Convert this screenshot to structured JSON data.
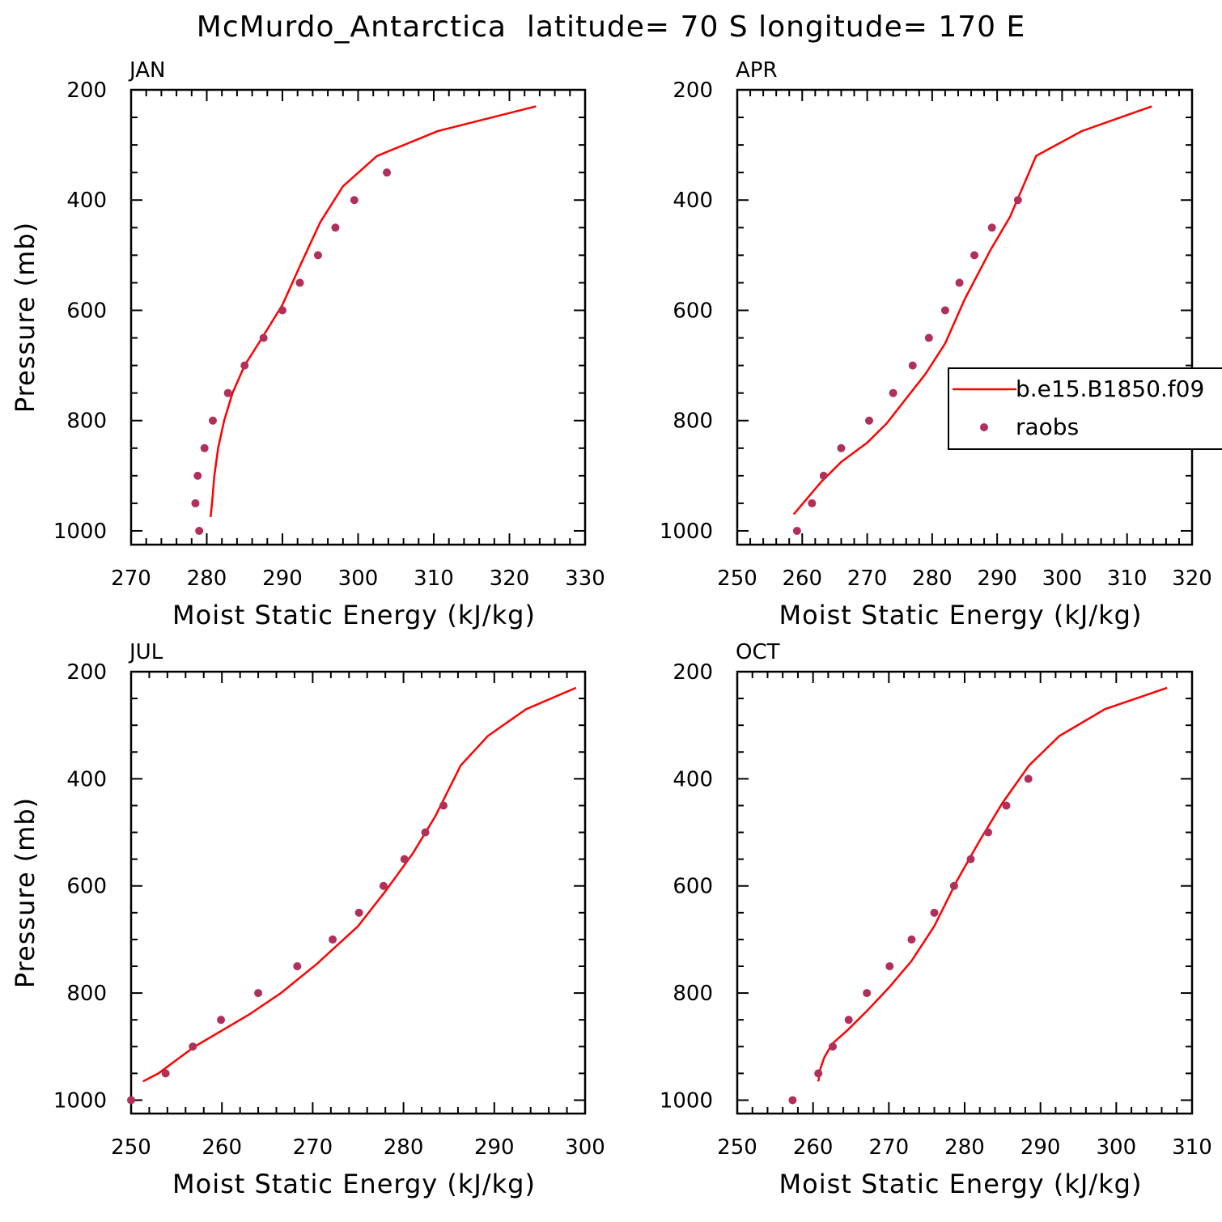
{
  "figure": {
    "title": "McMurdo_Antarctica  latitude= 70 S longitude= 170 E"
  },
  "colors": {
    "model_line": "#ff0000",
    "obs_marker": "#b0305a",
    "axes": "#000000",
    "background": "#ffffff"
  },
  "legend": {
    "placement": "right-middle, top-right panel",
    "entries": [
      {
        "label": "b.e15.B1850.f09",
        "kind": "line",
        "color": "#ff0000"
      },
      {
        "label": "raobs",
        "kind": "marker",
        "color": "#b0305a"
      }
    ]
  },
  "chart_data": [
    {
      "type": "line+scatter",
      "panel": "JAN",
      "xlabel": "Moist Static Energy (kJ/kg)",
      "ylabel": "Pressure (mb)",
      "xlim": [
        270,
        330
      ],
      "ylim": [
        1025,
        200
      ],
      "y_inverted": true,
      "xticks": [
        270,
        280,
        290,
        300,
        310,
        320,
        330
      ],
      "yticks": [
        200,
        400,
        600,
        800,
        1000
      ],
      "series": [
        {
          "name": "b.e15.B1850.f09",
          "kind": "line",
          "x": [
            280.5,
            280.7,
            281.0,
            281.5,
            282.3,
            283.4,
            285.0,
            287.3,
            290.0,
            292.3,
            295.0,
            298.0,
            302.5,
            310.5,
            323.5
          ],
          "y": [
            975,
            950,
            900,
            850,
            800,
            750,
            700,
            650,
            590,
            520,
            440,
            375,
            320,
            275,
            230
          ]
        },
        {
          "name": "raobs",
          "kind": "scatter",
          "x": [
            279.0,
            278.5,
            278.8,
            279.7,
            280.8,
            282.8,
            285.0,
            287.5,
            290.0,
            292.3,
            294.7,
            297.0,
            299.5,
            303.8
          ],
          "y": [
            1000,
            950,
            900,
            850,
            800,
            750,
            700,
            650,
            600,
            550,
            500,
            450,
            400,
            350
          ]
        }
      ]
    },
    {
      "type": "line+scatter",
      "panel": "APR",
      "xlabel": "Moist Static Energy (kJ/kg)",
      "ylabel": "",
      "xlim": [
        250,
        320
      ],
      "ylim": [
        1025,
        200
      ],
      "y_inverted": true,
      "xticks": [
        250,
        260,
        270,
        280,
        290,
        300,
        310,
        320
      ],
      "yticks": [
        200,
        400,
        600,
        800,
        1000
      ],
      "series": [
        {
          "name": "b.e15.B1850.f09",
          "kind": "line",
          "x": [
            258.7,
            261.2,
            263.0,
            266.0,
            270.0,
            273.0,
            276.0,
            279.0,
            282.0,
            285.0,
            289.0,
            292.0,
            296.0,
            303.0,
            313.8
          ],
          "y": [
            970,
            935,
            910,
            875,
            840,
            805,
            760,
            715,
            660,
            580,
            490,
            430,
            320,
            275,
            230
          ]
        },
        {
          "name": "raobs",
          "kind": "scatter",
          "x": [
            259.2,
            261.5,
            263.3,
            266.0,
            270.3,
            274.0,
            277.0,
            279.5,
            282.0,
            284.2,
            286.5,
            289.2,
            293.2
          ],
          "y": [
            1000,
            950,
            900,
            850,
            800,
            750,
            700,
            650,
            600,
            550,
            500,
            450,
            400
          ]
        }
      ]
    },
    {
      "type": "line+scatter",
      "panel": "JUL",
      "xlabel": "Moist Static Energy (kJ/kg)",
      "ylabel": "Pressure (mb)",
      "xlim": [
        250,
        300
      ],
      "ylim": [
        1025,
        200
      ],
      "y_inverted": true,
      "xticks": [
        250,
        260,
        270,
        280,
        290,
        300
      ],
      "yticks": [
        200,
        400,
        600,
        800,
        1000
      ],
      "series": [
        {
          "name": "b.e15.B1850.f09",
          "kind": "line",
          "x": [
            251.3,
            253.0,
            255.0,
            257.0,
            260.0,
            263.0,
            266.5,
            270.5,
            275.0,
            278.0,
            281.0,
            283.5,
            286.3,
            289.3,
            293.5,
            299.0
          ],
          "y": [
            965,
            950,
            925,
            900,
            870,
            840,
            800,
            745,
            675,
            610,
            540,
            470,
            375,
            320,
            270,
            230
          ]
        },
        {
          "name": "raobs",
          "kind": "scatter",
          "x": [
            250.0,
            253.8,
            256.8,
            259.9,
            264.0,
            268.3,
            272.2,
            275.1,
            277.8,
            280.1,
            282.4,
            284.4
          ],
          "y": [
            1000,
            950,
            900,
            850,
            800,
            750,
            700,
            650,
            600,
            550,
            500,
            450
          ]
        }
      ]
    },
    {
      "type": "line+scatter",
      "panel": "OCT",
      "xlabel": "Moist Static Energy (kJ/kg)",
      "ylabel": "",
      "xlim": [
        250,
        310
      ],
      "ylim": [
        1025,
        200
      ],
      "y_inverted": true,
      "xticks": [
        250,
        260,
        270,
        280,
        290,
        300,
        310
      ],
      "yticks": [
        200,
        400,
        600,
        800,
        1000
      ],
      "series": [
        {
          "name": "b.e15.B1850.f09",
          "kind": "line",
          "x": [
            260.7,
            261.0,
            261.5,
            262.5,
            264.5,
            267.0,
            270.0,
            273.0,
            276.0,
            279.0,
            282.0,
            285.0,
            288.5,
            292.5,
            298.5,
            306.7
          ],
          "y": [
            965,
            940,
            920,
            895,
            870,
            835,
            790,
            740,
            675,
            590,
            515,
            445,
            375,
            320,
            270,
            230
          ]
        },
        {
          "name": "raobs",
          "kind": "scatter",
          "x": [
            257.3,
            260.7,
            262.6,
            264.7,
            267.1,
            270.1,
            273.0,
            276.0,
            278.6,
            280.8,
            283.1,
            285.5,
            288.4
          ],
          "y": [
            1000,
            950,
            900,
            850,
            800,
            750,
            700,
            650,
            600,
            550,
            500,
            450,
            400
          ]
        }
      ]
    }
  ]
}
